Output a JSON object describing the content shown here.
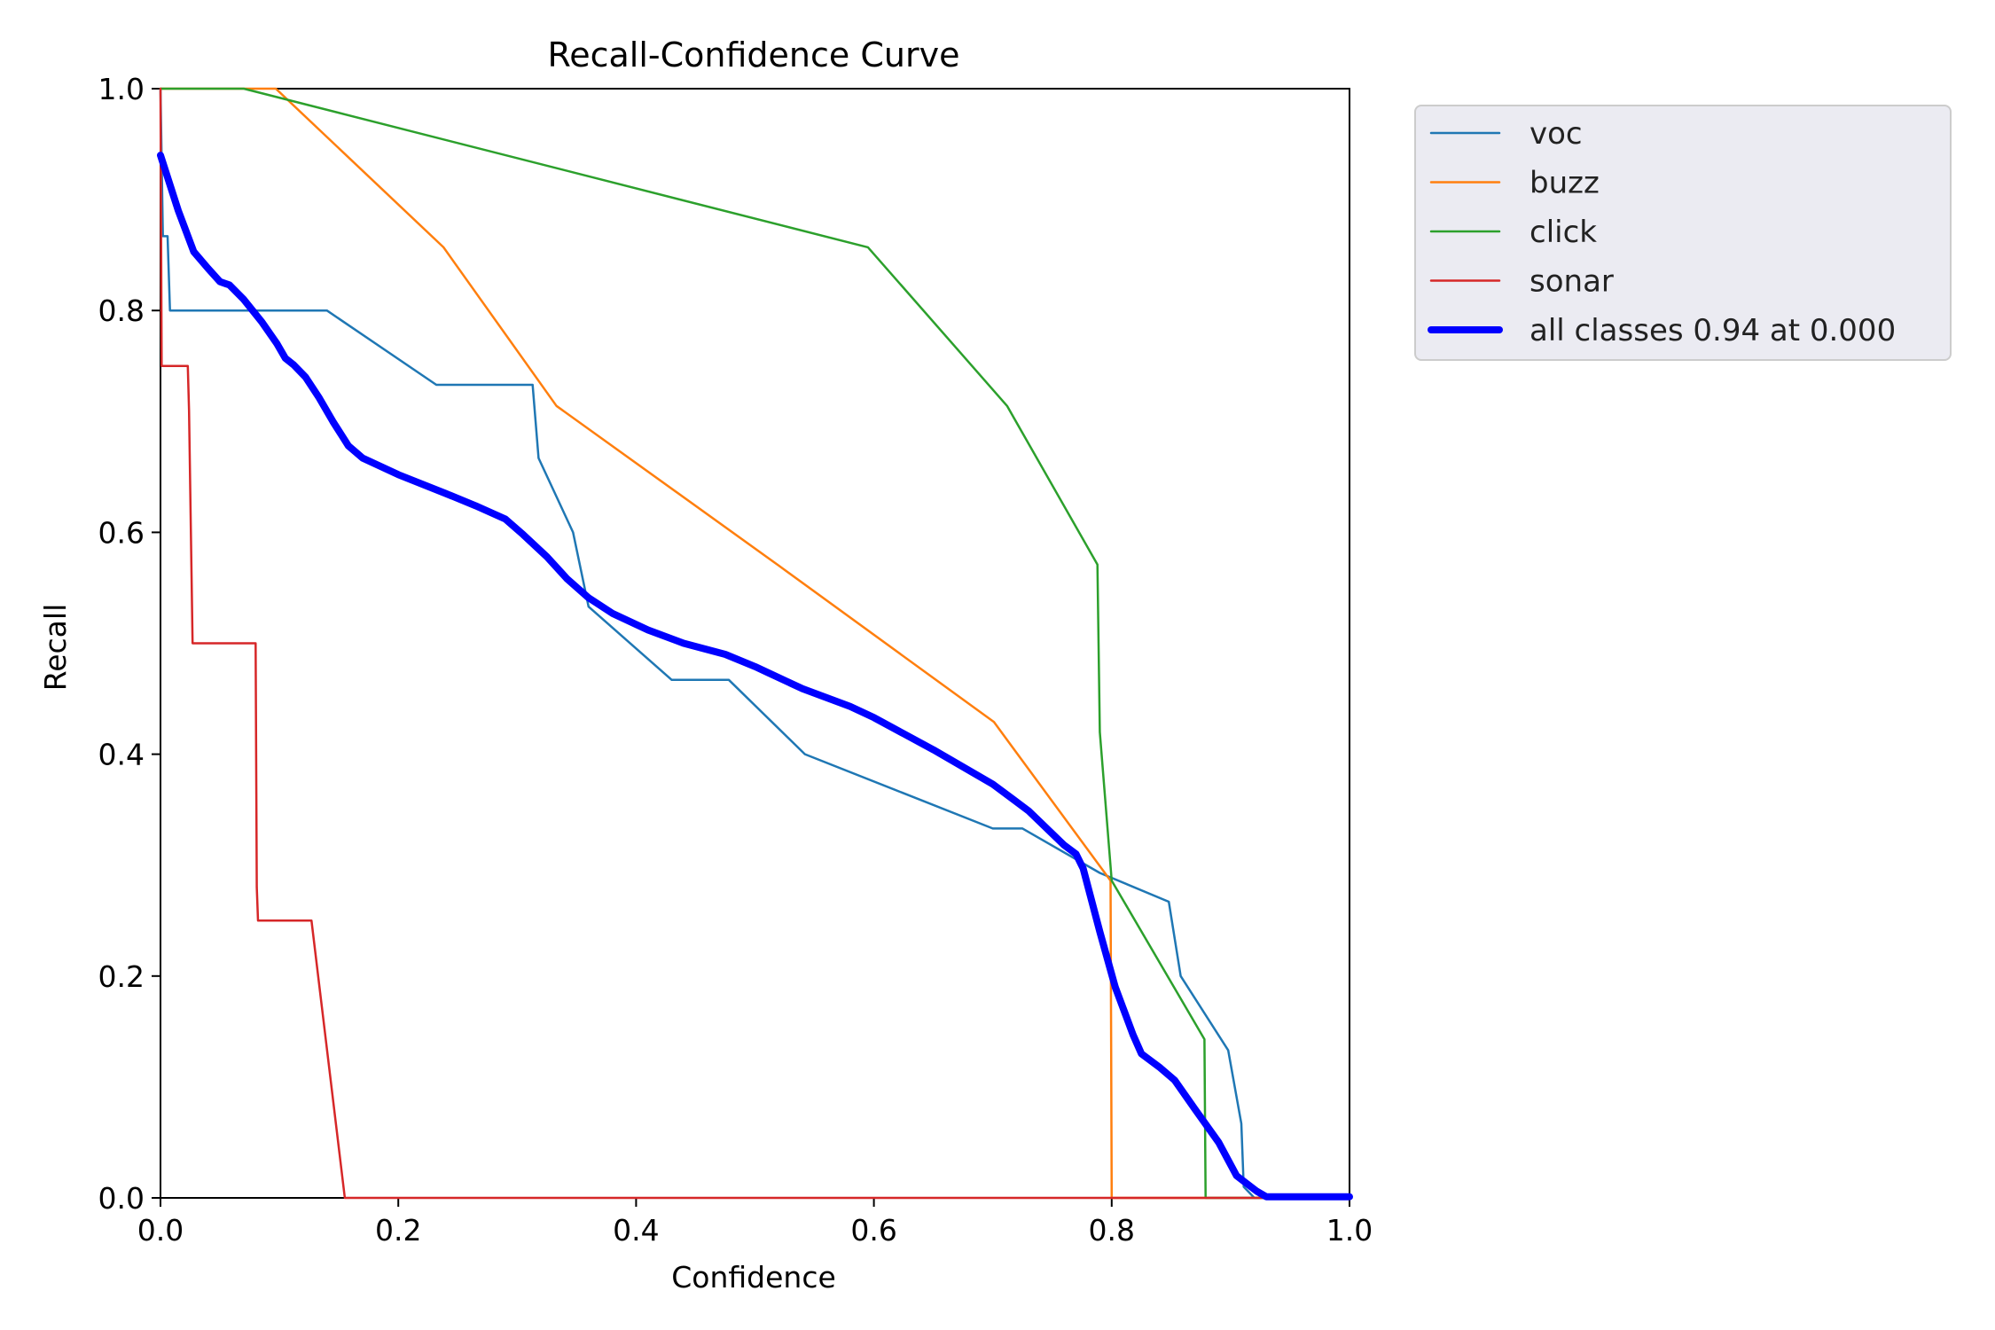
{
  "chart_data": {
    "type": "line",
    "title": "Recall-Confidence Curve",
    "xlabel": "Confidence",
    "ylabel": "Recall",
    "xlim": [
      0,
      1
    ],
    "ylim": [
      0,
      1
    ],
    "xticks": [
      "0.0",
      "0.2",
      "0.4",
      "0.6",
      "0.8",
      "1.0"
    ],
    "yticks": [
      "0.0",
      "0.2",
      "0.4",
      "0.6",
      "0.8",
      "1.0"
    ],
    "grid": false,
    "legend_position": "outside-top-right",
    "series": [
      {
        "name": "voc",
        "color": "#1f77b4",
        "width": "thin",
        "points": [
          [
            0.0,
            1.0
          ],
          [
            0.002,
            0.867
          ],
          [
            0.006,
            0.867
          ],
          [
            0.008,
            0.8
          ],
          [
            0.14,
            0.8
          ],
          [
            0.232,
            0.733
          ],
          [
            0.3,
            0.733
          ],
          [
            0.313,
            0.733
          ],
          [
            0.318,
            0.667
          ],
          [
            0.347,
            0.6
          ],
          [
            0.36,
            0.533
          ],
          [
            0.43,
            0.467
          ],
          [
            0.478,
            0.467
          ],
          [
            0.542,
            0.4
          ],
          [
            0.7,
            0.333
          ],
          [
            0.725,
            0.333
          ],
          [
            0.79,
            0.293
          ],
          [
            0.848,
            0.267
          ],
          [
            0.858,
            0.2
          ],
          [
            0.898,
            0.133
          ],
          [
            0.909,
            0.067
          ],
          [
            0.911,
            0.01
          ],
          [
            0.92,
            0.0
          ],
          [
            1.0,
            0.0
          ]
        ]
      },
      {
        "name": "buzz",
        "color": "#ff7f0e",
        "width": "thin",
        "points": [
          [
            0.0,
            1.0
          ],
          [
            0.097,
            1.0
          ],
          [
            0.238,
            0.857
          ],
          [
            0.333,
            0.714
          ],
          [
            0.52,
            0.57
          ],
          [
            0.701,
            0.429
          ],
          [
            0.799,
            0.286
          ],
          [
            0.8,
            0.0
          ],
          [
            1.0,
            0.0
          ]
        ]
      },
      {
        "name": "click",
        "color": "#2ca02c",
        "width": "thin",
        "points": [
          [
            0.0,
            1.0
          ],
          [
            0.07,
            1.0
          ],
          [
            0.595,
            0.857
          ],
          [
            0.712,
            0.714
          ],
          [
            0.788,
            0.571
          ],
          [
            0.79,
            0.42
          ],
          [
            0.8,
            0.286
          ],
          [
            0.878,
            0.143
          ],
          [
            0.879,
            0.0
          ],
          [
            1.0,
            0.0
          ]
        ]
      },
      {
        "name": "sonar",
        "color": "#d62728",
        "width": "thin",
        "points": [
          [
            0.0,
            1.0
          ],
          [
            0.001,
            0.75
          ],
          [
            0.023,
            0.75
          ],
          [
            0.024,
            0.71
          ],
          [
            0.027,
            0.5
          ],
          [
            0.08,
            0.5
          ],
          [
            0.081,
            0.28
          ],
          [
            0.082,
            0.25
          ],
          [
            0.127,
            0.25
          ],
          [
            0.155,
            0.0
          ],
          [
            1.0,
            0.0
          ]
        ]
      },
      {
        "name": "all classes 0.94 at 0.000",
        "color": "#0000ff",
        "width": "thick",
        "points": [
          [
            0.0,
            0.94
          ],
          [
            0.015,
            0.89
          ],
          [
            0.028,
            0.853
          ],
          [
            0.04,
            0.838
          ],
          [
            0.05,
            0.826
          ],
          [
            0.058,
            0.823
          ],
          [
            0.07,
            0.81
          ],
          [
            0.085,
            0.79
          ],
          [
            0.098,
            0.77
          ],
          [
            0.105,
            0.757
          ],
          [
            0.112,
            0.751
          ],
          [
            0.122,
            0.74
          ],
          [
            0.133,
            0.722
          ],
          [
            0.145,
            0.7
          ],
          [
            0.158,
            0.678
          ],
          [
            0.17,
            0.667
          ],
          [
            0.2,
            0.652
          ],
          [
            0.24,
            0.635
          ],
          [
            0.265,
            0.624
          ],
          [
            0.29,
            0.612
          ],
          [
            0.305,
            0.598
          ],
          [
            0.325,
            0.578
          ],
          [
            0.342,
            0.558
          ],
          [
            0.36,
            0.541
          ],
          [
            0.38,
            0.527
          ],
          [
            0.41,
            0.512
          ],
          [
            0.44,
            0.5
          ],
          [
            0.475,
            0.49
          ],
          [
            0.5,
            0.479
          ],
          [
            0.54,
            0.459
          ],
          [
            0.58,
            0.443
          ],
          [
            0.6,
            0.433
          ],
          [
            0.65,
            0.404
          ],
          [
            0.7,
            0.373
          ],
          [
            0.73,
            0.349
          ],
          [
            0.76,
            0.318
          ],
          [
            0.77,
            0.31
          ],
          [
            0.776,
            0.297
          ],
          [
            0.79,
            0.24
          ],
          [
            0.803,
            0.19
          ],
          [
            0.818,
            0.147
          ],
          [
            0.825,
            0.13
          ],
          [
            0.84,
            0.118
          ],
          [
            0.853,
            0.106
          ],
          [
            0.87,
            0.08
          ],
          [
            0.89,
            0.05
          ],
          [
            0.905,
            0.02
          ],
          [
            0.922,
            0.006
          ],
          [
            0.93,
            0.001
          ],
          [
            1.0,
            0.001
          ]
        ]
      }
    ]
  }
}
